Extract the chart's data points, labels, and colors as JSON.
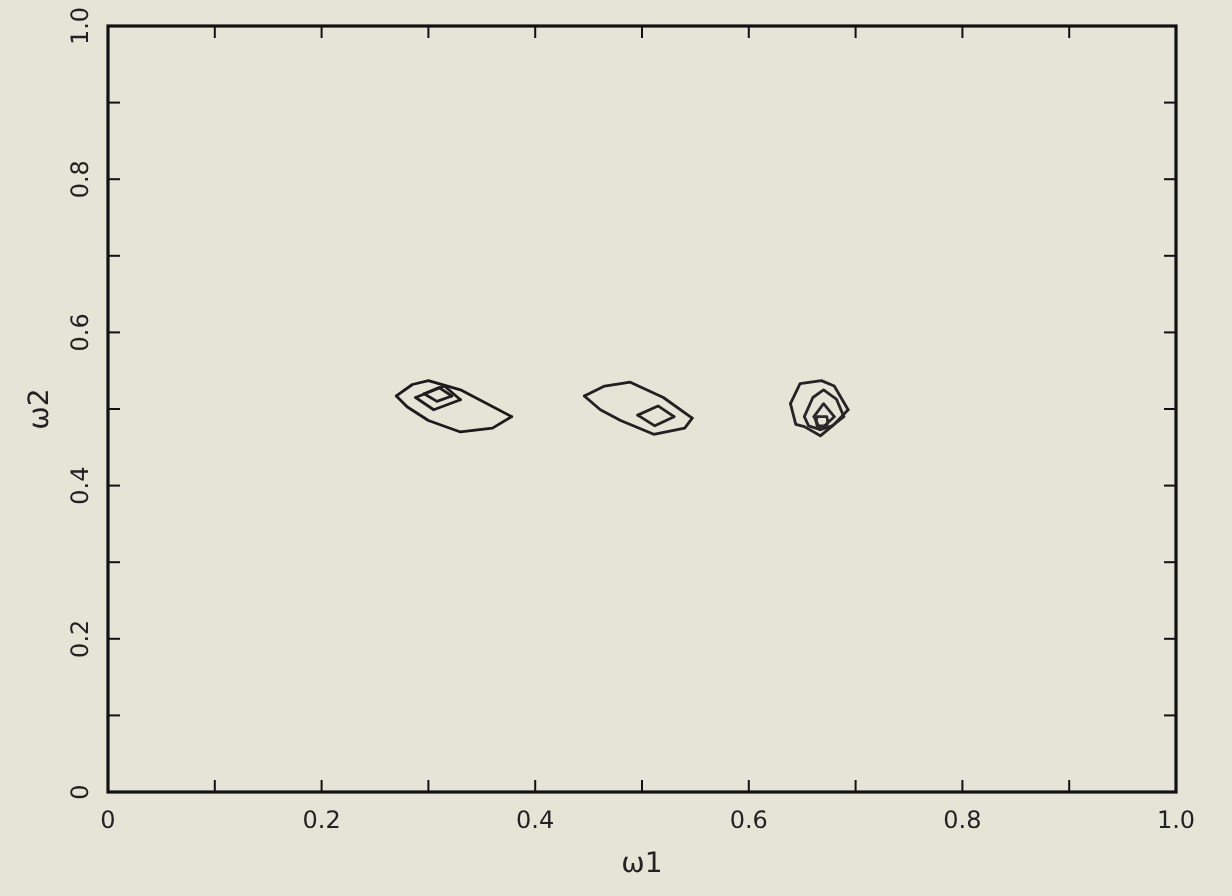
{
  "chart_data": {
    "type": "line",
    "xlabel": "ω1",
    "ylabel": "ω2",
    "xlim": [
      0,
      1
    ],
    "ylim": [
      0,
      1
    ],
    "xticks": [
      0,
      {
        "value": 0.1,
        "label": null
      },
      0.2,
      {
        "value": 0.3,
        "label": null
      },
      0.4,
      {
        "value": 0.5,
        "label": null
      },
      0.6,
      {
        "value": 0.7,
        "label": null
      },
      0.8,
      {
        "value": 0.9,
        "label": null
      },
      {
        "value": 1,
        "label": "1.0"
      }
    ],
    "yticks": [
      0,
      {
        "value": 0.1,
        "label": null
      },
      0.2,
      {
        "value": 0.3,
        "label": null
      },
      0.4,
      {
        "value": 0.5,
        "label": null
      },
      0.6,
      {
        "value": 0.7,
        "label": null
      },
      0.8,
      {
        "value": 0.9,
        "label": null
      },
      {
        "value": 1,
        "label": "1.0"
      }
    ],
    "grid": false,
    "marker": "none",
    "line_style": "solid",
    "series": [
      {
        "color": "#1a1a1a",
        "x": [
          0.27,
          0.285,
          0.3,
          0.33,
          0.378
        ],
        "values": [
          0.517,
          0.532,
          0.537,
          0.525,
          0.49
        ]
      },
      {
        "color": "#1b1b1b",
        "x": [
          0.27,
          0.28,
          0.3,
          0.33,
          0.36,
          0.378
        ],
        "values": [
          0.517,
          0.503,
          0.485,
          0.47,
          0.475,
          0.49
        ]
      },
      {
        "color": "#1c1c1c",
        "x": [
          0.288,
          0.315,
          0.33
        ],
        "values": [
          0.515,
          0.53,
          0.512
        ]
      },
      {
        "color": "#1d1d1d",
        "x": [
          0.288,
          0.305,
          0.33
        ],
        "values": [
          0.515,
          0.499,
          0.512
        ]
      },
      {
        "color": "#1e1e1e",
        "x": [
          0.296,
          0.31,
          0.322
        ],
        "values": [
          0.52,
          0.528,
          0.517
        ]
      },
      {
        "color": "#1f1f1f",
        "x": [
          0.296,
          0.308,
          0.322
        ],
        "values": [
          0.52,
          0.51,
          0.517
        ]
      },
      {
        "color": "#202020",
        "x": [
          0.446,
          0.465,
          0.489,
          0.52,
          0.547
        ],
        "values": [
          0.517,
          0.53,
          0.535,
          0.515,
          0.488
        ]
      },
      {
        "color": "#212121",
        "x": [
          0.446,
          0.461,
          0.48,
          0.511,
          0.54,
          0.547
        ],
        "values": [
          0.517,
          0.499,
          0.485,
          0.467,
          0.475,
          0.488
        ]
      },
      {
        "color": "#222222",
        "x": [
          0.496,
          0.515,
          0.53
        ],
        "values": [
          0.492,
          0.504,
          0.49
        ]
      },
      {
        "color": "#232323",
        "x": [
          0.496,
          0.512,
          0.53
        ],
        "values": [
          0.492,
          0.478,
          0.49
        ]
      },
      {
        "color": "#242424",
        "x": [
          0.639,
          0.648,
          0.668,
          0.68,
          0.693
        ],
        "values": [
          0.507,
          0.533,
          0.537,
          0.53,
          0.499
        ]
      },
      {
        "color": "#252525",
        "x": [
          0.639,
          0.644,
          0.652,
          0.667,
          0.68,
          0.693
        ],
        "values": [
          0.507,
          0.48,
          0.477,
          0.465,
          0.48,
          0.499
        ]
      },
      {
        "color": "#262626",
        "x": [
          0.652,
          0.66,
          0.67,
          0.682,
          0.689
        ],
        "values": [
          0.49,
          0.515,
          0.525,
          0.513,
          0.49
        ]
      },
      {
        "color": "#272727",
        "x": [
          0.652,
          0.656,
          0.667,
          0.678,
          0.689
        ],
        "values": [
          0.49,
          0.478,
          0.473,
          0.478,
          0.49
        ]
      },
      {
        "color": "#282828",
        "x": [
          0.661,
          0.67,
          0.68
        ],
        "values": [
          0.49,
          0.507,
          0.49
        ]
      },
      {
        "color": "#292929",
        "x": [
          0.661,
          0.667,
          0.68
        ],
        "values": [
          0.49,
          0.473,
          0.49
        ]
      },
      {
        "color": "#2a2a2a",
        "x": [
          0.663,
          0.664,
          0.673,
          0.674
        ],
        "values": [
          0.484,
          0.49,
          0.49,
          0.484
        ]
      },
      {
        "color": "#2b2b2b",
        "x": [
          0.663,
          0.664,
          0.673,
          0.674
        ],
        "values": [
          0.484,
          0.478,
          0.478,
          0.484
        ]
      }
    ]
  }
}
